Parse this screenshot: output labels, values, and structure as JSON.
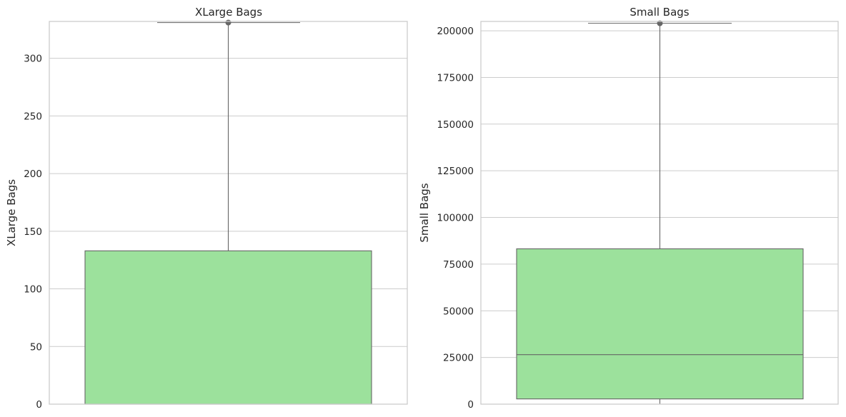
{
  "chart_data": [
    {
      "type": "box",
      "title": "XLarge Bags",
      "xlabel": "",
      "ylabel": "XLarge Bags",
      "ylim": [
        0,
        332
      ],
      "yticks": [
        0,
        50,
        100,
        150,
        200,
        250,
        300
      ],
      "ytick_labels": [
        "0",
        "50",
        "100",
        "150",
        "200",
        "250",
        "300"
      ],
      "grid": true,
      "box": {
        "q1": 0,
        "median": 0,
        "q3": 133,
        "whisker_low": 0,
        "whisker_high": 331
      },
      "outliers": [
        331
      ],
      "colors": {
        "box_fill": "#9ce19c",
        "edge": "#666666",
        "grid": "#cccccc",
        "spine": "#cccccc"
      }
    },
    {
      "type": "box",
      "title": "Small Bags",
      "xlabel": "",
      "ylabel": "Small Bags",
      "ylim": [
        0,
        205000
      ],
      "yticks": [
        0,
        25000,
        50000,
        75000,
        100000,
        125000,
        150000,
        175000,
        200000
      ],
      "ytick_labels": [
        "0",
        "25000",
        "50000",
        "75000",
        "100000",
        "125000",
        "150000",
        "175000",
        "200000"
      ],
      "grid": true,
      "box": {
        "q1": 2800,
        "median": 26500,
        "q3": 83200,
        "whisker_low": 0,
        "whisker_high": 204000
      },
      "outliers": [
        204000
      ],
      "colors": {
        "box_fill": "#9ce19c",
        "edge": "#666666",
        "grid": "#cccccc",
        "spine": "#cccccc"
      }
    }
  ]
}
